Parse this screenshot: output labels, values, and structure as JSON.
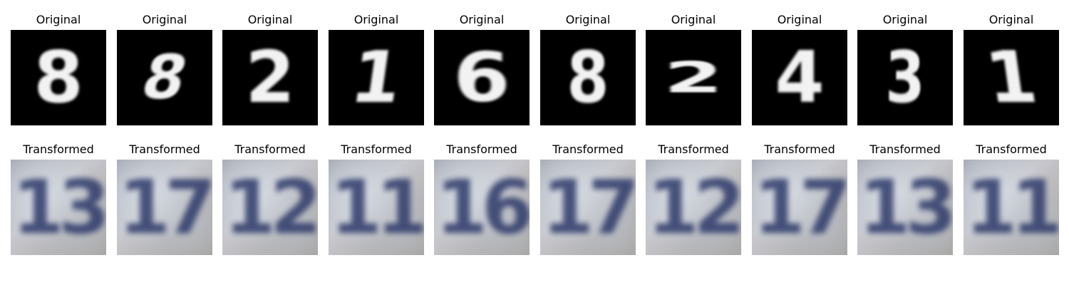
{
  "original_label": "Original",
  "transformed_label": "Transformed",
  "originals": [
    {
      "digit": "8"
    },
    {
      "digit": "8"
    },
    {
      "digit": "2"
    },
    {
      "digit": "1"
    },
    {
      "digit": "6"
    },
    {
      "digit": "8"
    },
    {
      "digit": "2"
    },
    {
      "digit": "4"
    },
    {
      "digit": "3"
    },
    {
      "digit": "1"
    }
  ],
  "transformed": [
    {
      "digit": "13"
    },
    {
      "digit": "17"
    },
    {
      "digit": "12"
    },
    {
      "digit": "11"
    },
    {
      "digit": "16"
    },
    {
      "digit": "17"
    },
    {
      "digit": "12"
    },
    {
      "digit": "17"
    },
    {
      "digit": "13"
    },
    {
      "digit": "11"
    }
  ]
}
